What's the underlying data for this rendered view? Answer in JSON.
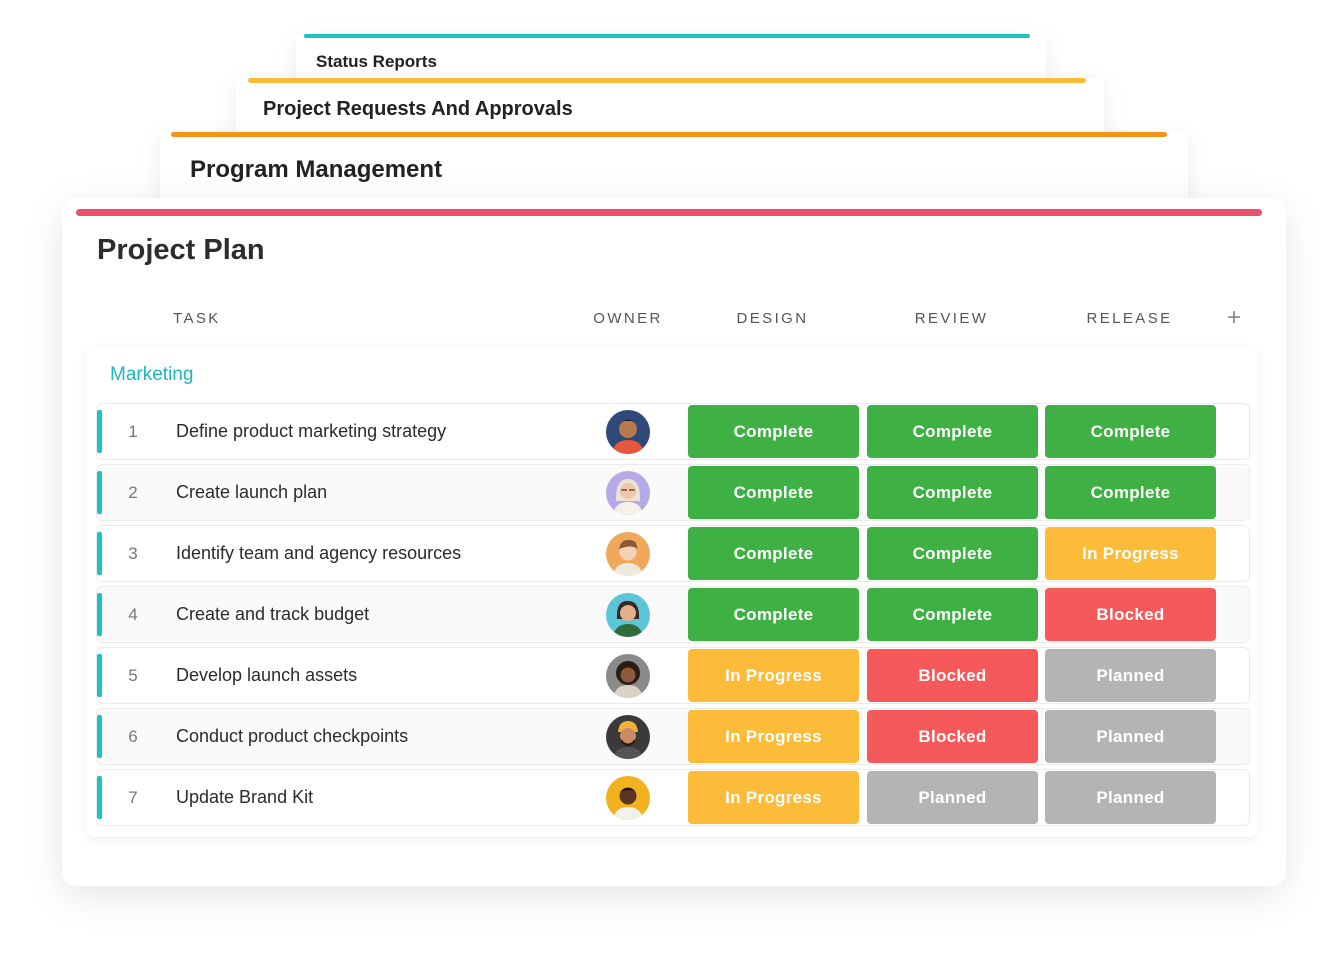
{
  "tabs": [
    {
      "title": "Status Reports",
      "color": "#1fc1c3"
    },
    {
      "title": "Project Requests And Approvals",
      "color": "#f9bd3a"
    },
    {
      "title": "Program Management",
      "color": "#f39416"
    }
  ],
  "main": {
    "title": "Project Plan",
    "color": "#e9516d",
    "columns": {
      "task": "TASK",
      "owner": "OWNER",
      "design": "DESIGN",
      "review": "REVIEW",
      "release": "RELEASE",
      "add": "+"
    },
    "group": "Marketing",
    "rows": [
      {
        "num": "1",
        "task": "Define product marketing strategy",
        "design": "Complete",
        "review": "Complete",
        "release": "Complete"
      },
      {
        "num": "2",
        "task": "Create launch plan",
        "design": "Complete",
        "review": "Complete",
        "release": "Complete"
      },
      {
        "num": "3",
        "task": "Identify team and agency resources",
        "design": "Complete",
        "review": "Complete",
        "release": "In Progress"
      },
      {
        "num": "4",
        "task": "Create and track budget",
        "design": "Complete",
        "review": "Complete",
        "release": "Blocked"
      },
      {
        "num": "5",
        "task": "Develop launch assets",
        "design": "In Progress",
        "review": "Blocked",
        "release": "Planned"
      },
      {
        "num": "6",
        "task": "Conduct product checkpoints",
        "design": "In Progress",
        "review": "Blocked",
        "release": "Planned"
      },
      {
        "num": "7",
        "task": "Update Brand Kit",
        "design": "In Progress",
        "review": "Planned",
        "release": "Planned"
      }
    ]
  },
  "status_colors": {
    "Complete": "#3fb043",
    "In Progress": "#fcbc3a",
    "Blocked": "#f65959",
    "Planned": "#b4b4b4"
  }
}
